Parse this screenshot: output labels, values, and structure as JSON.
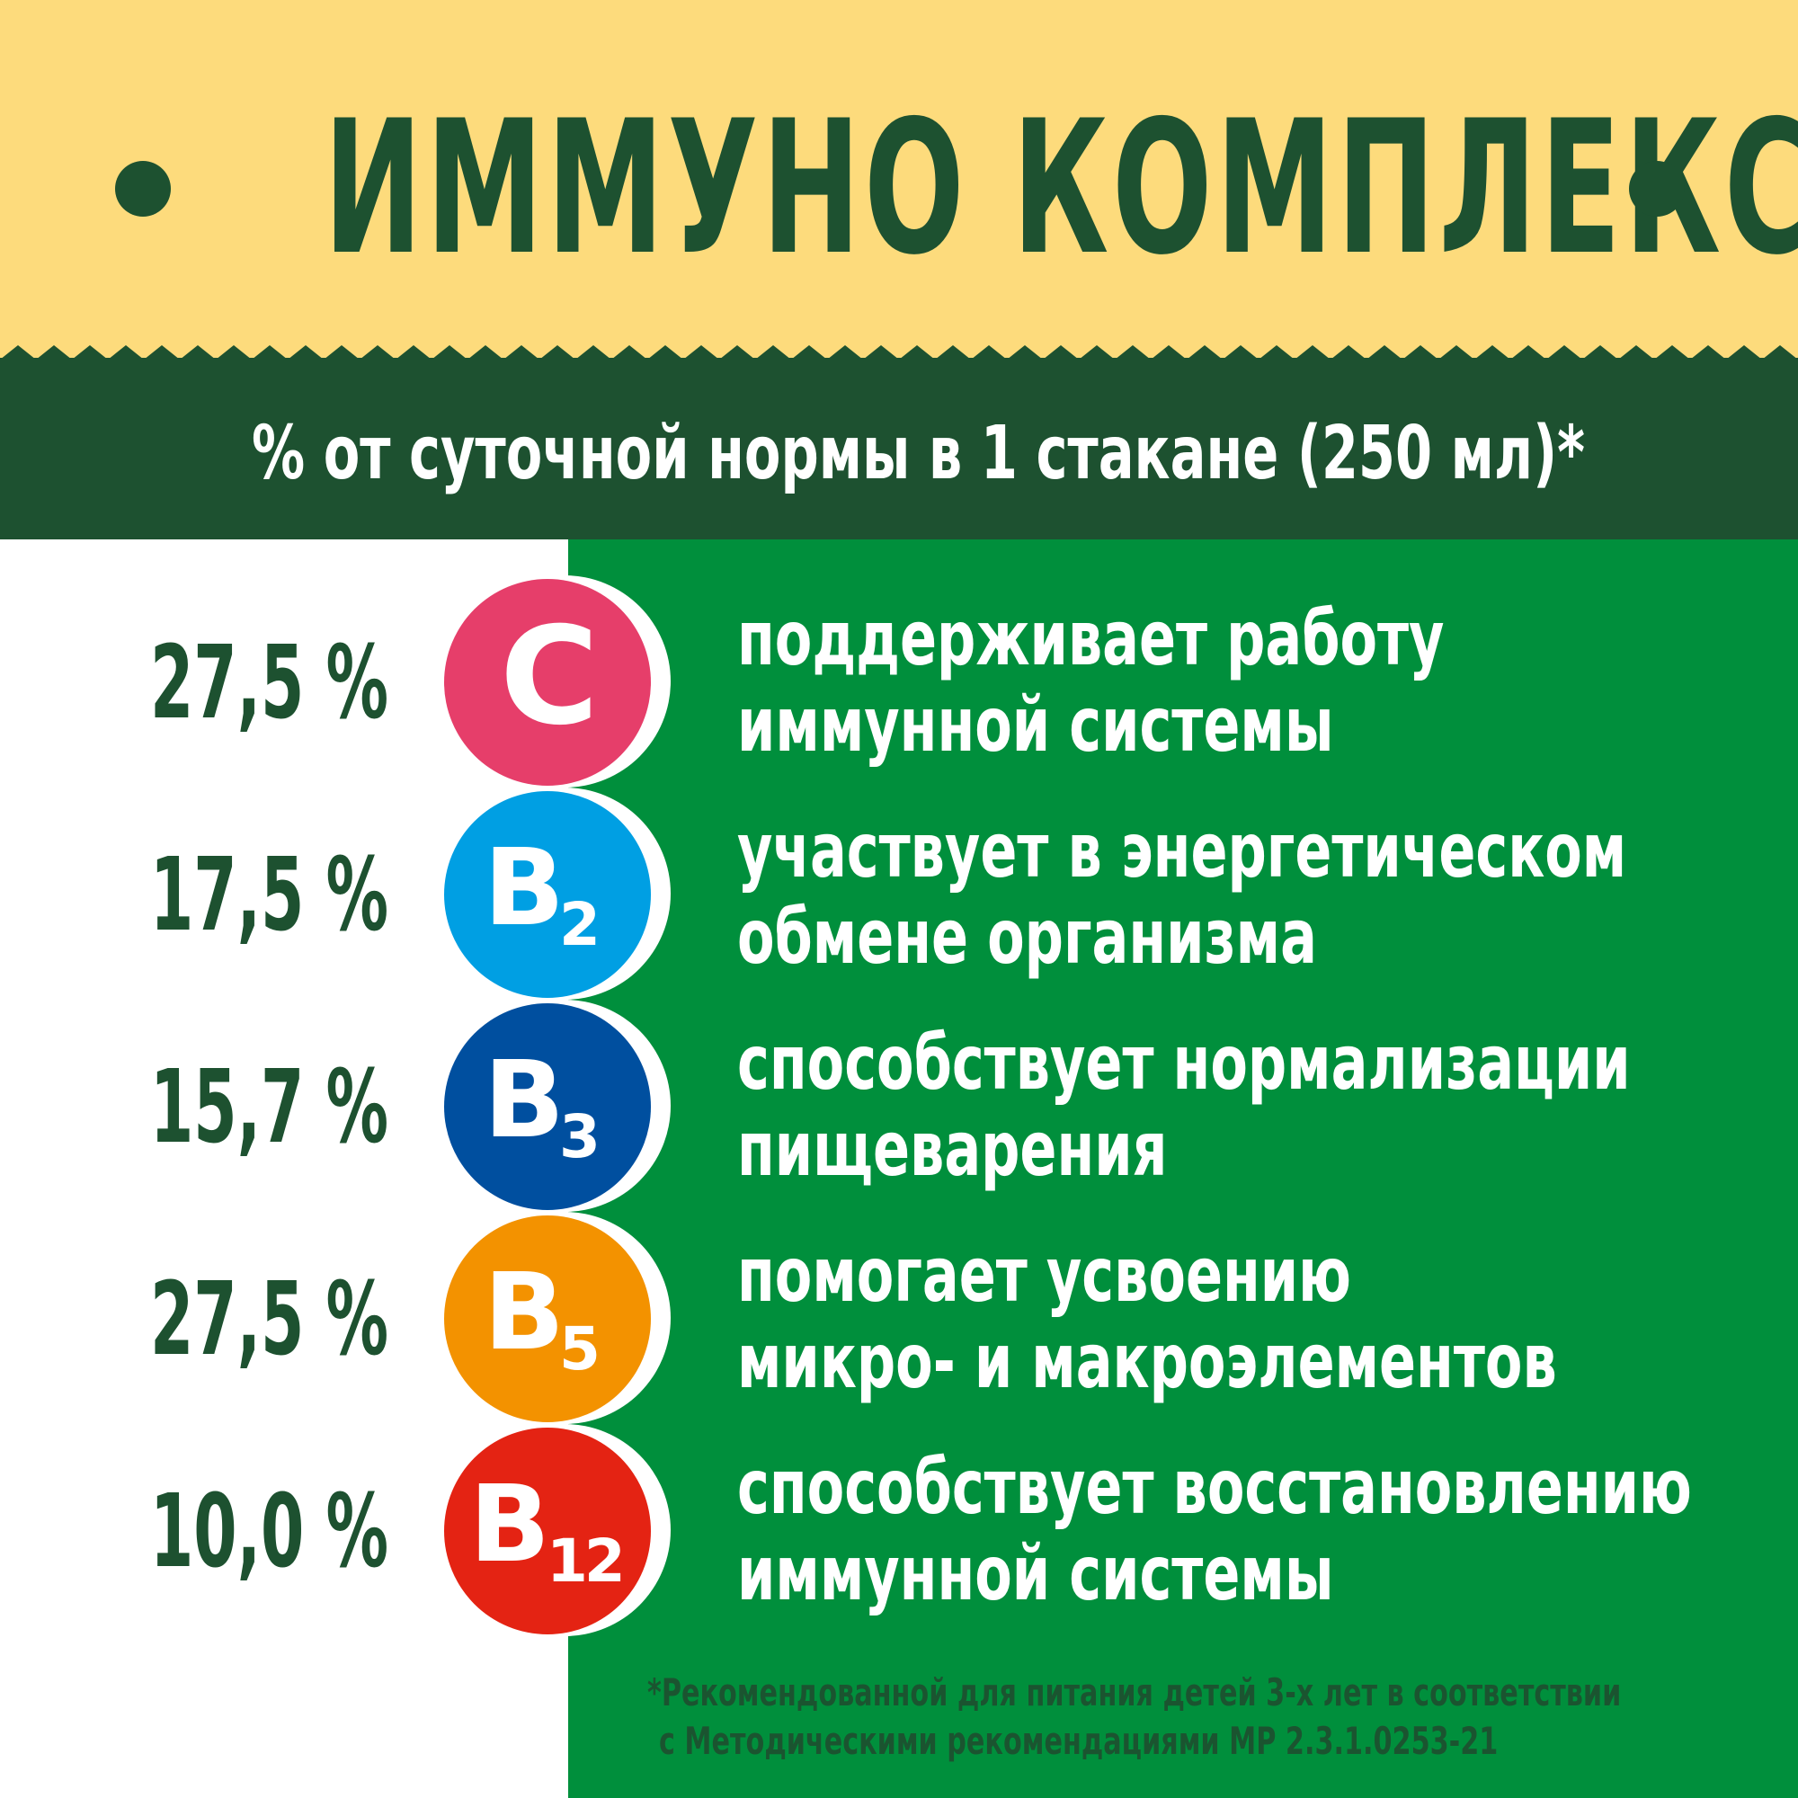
{
  "header": {
    "title": "ИММУНО КОМПЛЕКС",
    "subtitle": "% от суточной нормы в 1 стакане (250 мл)*"
  },
  "colors": {
    "top_band": "#fddb7c",
    "dark_green": "#1d5130",
    "green_panel": "#008f3c",
    "vitamin_c": "#e63e6a",
    "vitamin_b2": "#009fe3",
    "vitamin_b3": "#004f9f",
    "vitamin_b5": "#f39200",
    "vitamin_b12": "#e42313"
  },
  "vitamins": [
    {
      "percent": "27,5 %",
      "letter": "C",
      "sub": "",
      "line1": "поддерживает работу",
      "line2": "иммунной системы"
    },
    {
      "percent": "17,5 %",
      "letter": "B",
      "sub": "2",
      "line1": "участвует в энергетическом",
      "line2": "обмене организма"
    },
    {
      "percent": "15,7 %",
      "letter": "B",
      "sub": "3",
      "line1": "способствует нормализации",
      "line2": "пищеварения"
    },
    {
      "percent": "27,5 %",
      "letter": "B",
      "sub": "5",
      "line1": "помогает усвоению",
      "line2": "микро- и макроэлементов"
    },
    {
      "percent": "10,0 %",
      "letter": "B",
      "sub": "12",
      "line1": "способствует восстановлению",
      "line2": "иммунной системы"
    }
  ],
  "footnote": {
    "line1": "*Рекомендованной для питания детей 3-х лет в соответствии",
    "line2": "с Методическими рекомендациями МР 2.3.1.0253-21"
  }
}
